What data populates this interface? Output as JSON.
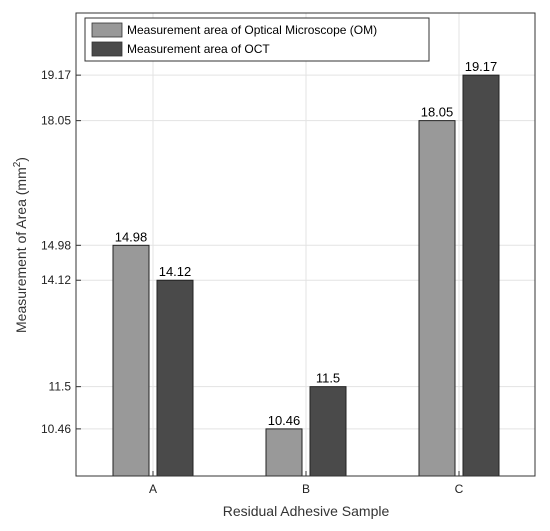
{
  "chart_data": {
    "type": "bar",
    "title": "",
    "xlabel": "Residual Adhesive Sample",
    "ylabel_main": "Measurement of Area (mm",
    "ylabel_sup": "2",
    "ylabel_close": ")",
    "categories": [
      "A",
      "B",
      "C"
    ],
    "series": [
      {
        "name": "Measurement area of Optical Microscope (OM)",
        "values": [
          14.98,
          10.46,
          18.05
        ],
        "labels": [
          "14.98",
          "10.46",
          "18.05"
        ],
        "color": "#999999"
      },
      {
        "name": "Measurement area of OCT",
        "values": [
          14.12,
          11.5,
          19.17
        ],
        "labels": [
          "14.12",
          "11.5",
          "19.17"
        ],
        "color": "#4a4a4a"
      }
    ],
    "yticks": [
      10.46,
      11.5,
      14.12,
      14.98,
      18.05,
      19.17
    ],
    "ytick_labels": [
      "10.46",
      "11.5",
      "14.12",
      "14.98",
      "18.05",
      "19.17"
    ],
    "ylim": [
      9.3,
      20.7
    ],
    "grid": true,
    "legend_position": "top-left"
  }
}
